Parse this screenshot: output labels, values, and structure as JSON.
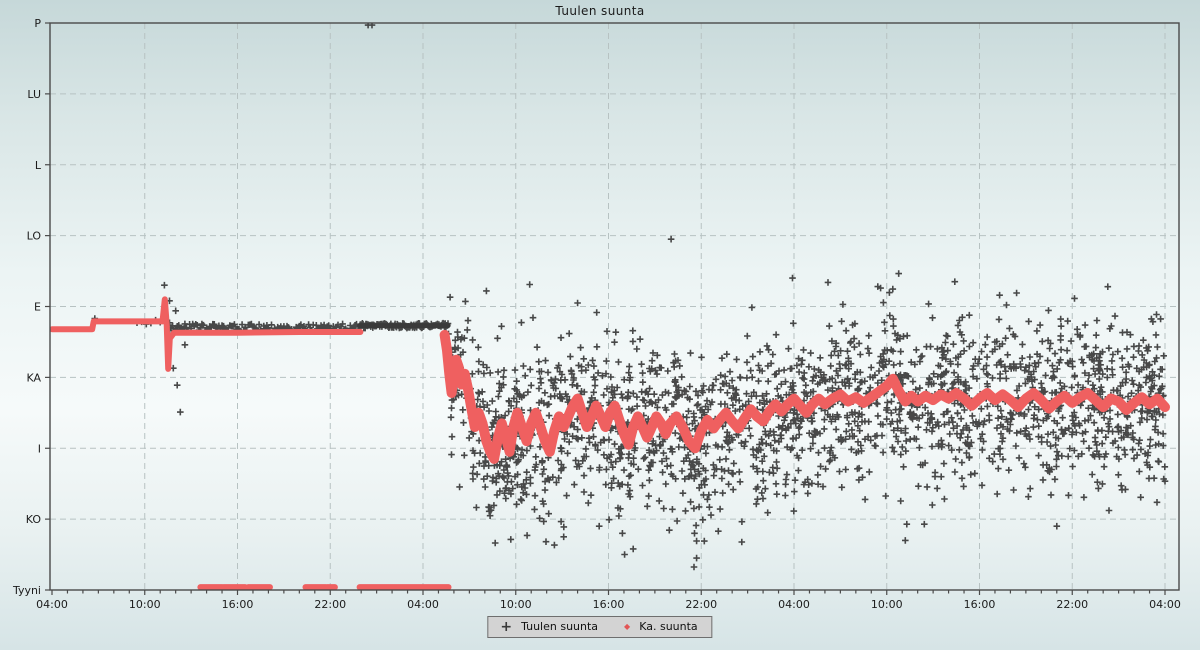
{
  "chart_data": {
    "type": "scatter",
    "title": "Tuulen suunta",
    "x_axis": {
      "major_tick_labels": [
        "04:00",
        "10:00",
        "16:00",
        "22:00",
        "04:00",
        "10:00",
        "16:00",
        "22:00",
        "04:00",
        "10:00",
        "16:00",
        "22:00",
        "04:00"
      ],
      "major_step_hours": 6,
      "minor_step_hours": 1,
      "range_hours": [
        0,
        72
      ],
      "start_time": "04:00"
    },
    "y_axis": {
      "categories": [
        "P",
        "LU",
        "L",
        "LO",
        "E",
        "KA",
        "I",
        "KO",
        "Tyyni"
      ],
      "top": "P",
      "bottom": "Tyyni",
      "grid": "dashed"
    },
    "legend_position": "bottom-center",
    "series": [
      {
        "name": "Tuulen suunta",
        "marker": "plus",
        "color": "#3a3a3a",
        "tight_band_segments": [
          {
            "t1": 5.5,
            "t2": 7.6,
            "v": 4.22,
            "jitter": 0.04,
            "step": 0.3
          },
          {
            "t1": 7.6,
            "t2": 19.9,
            "v": 4.3,
            "jitter": 0.055,
            "step": 0.1
          },
          {
            "t1": 19.9,
            "t2": 25.62,
            "v": 4.27,
            "jitter": 0.035,
            "step": 0.045
          }
        ],
        "band_core_line": {
          "t1": 19.9,
          "t2": 25.62,
          "v": 4.27
        },
        "scatter_cloud": {
          "t1": 25.62,
          "t2": 72,
          "count": 2150,
          "sigma": 0.58,
          "center_offset": 0.05
        },
        "outlier_points": [
          [
            2.77,
            4.17
          ],
          [
            20.45,
            0.03
          ],
          [
            20.7,
            0.03
          ],
          [
            40.05,
            3.05
          ],
          [
            7.27,
            3.7
          ],
          [
            7.6,
            3.92
          ],
          [
            8.0,
            4.06
          ],
          [
            8.6,
            4.54
          ],
          [
            7.85,
            4.87
          ],
          [
            8.1,
            5.11
          ],
          [
            8.3,
            5.49
          ],
          [
            34.0,
            3.95
          ],
          [
            28.1,
            3.78
          ],
          [
            30.9,
            3.69
          ],
          [
            47.9,
            3.6
          ],
          [
            53.6,
            3.74
          ],
          [
            58.4,
            3.65
          ],
          [
            61.3,
            3.84
          ],
          [
            62.4,
            3.81
          ],
          [
            68.3,
            3.72
          ],
          [
            50.2,
            3.66
          ],
          [
            36.9,
            7.2
          ],
          [
            37.6,
            7.42
          ],
          [
            41.7,
            7.55
          ],
          [
            42.2,
            7.31
          ],
          [
            43.1,
            7.17
          ],
          [
            46.3,
            6.91
          ],
          [
            42.1,
            7.01
          ],
          [
            33.1,
            7.25
          ],
          [
            35.4,
            7.1
          ],
          [
            55.2,
            7.3
          ],
          [
            65.0,
            7.1
          ]
        ]
      },
      {
        "name": "Ka. suunta",
        "marker": "dot",
        "color": "#ef6060",
        "calm_value_label": "Tyyni",
        "calm_segments": [
          [
            9.6,
            11.0
          ],
          [
            11.1,
            12.5
          ],
          [
            12.7,
            14.1
          ],
          [
            16.4,
            17.7
          ],
          [
            17.8,
            18.3
          ],
          [
            19.9,
            25.65
          ]
        ],
        "line_segments": [
          {
            "width": 6,
            "points": [
              [
                0,
                4.32
              ],
              [
                2.6,
                4.32
              ],
              [
                2.7,
                4.21
              ],
              [
                7.15,
                4.21
              ],
              [
                7.3,
                3.9
              ],
              [
                7.42,
                4.25
              ],
              [
                7.52,
                4.88
              ],
              [
                7.62,
                4.45
              ],
              [
                7.9,
                4.37
              ],
              [
                12,
                4.37
              ],
              [
                16,
                4.36
              ],
              [
                19.95,
                4.36
              ]
            ]
          },
          {
            "width": 10,
            "points": [
              [
                25.4,
                4.4
              ],
              [
                25.55,
                4.62
              ],
              [
                25.7,
                4.95
              ],
              [
                25.85,
                5.22
              ],
              [
                26.0,
                4.95
              ],
              [
                26.15,
                4.75
              ],
              [
                26.3,
                4.85
              ],
              [
                26.5,
                5.1
              ],
              [
                26.7,
                4.95
              ],
              [
                26.9,
                5.15
              ],
              [
                27.1,
                5.4
              ],
              [
                27.35,
                5.7
              ],
              [
                27.6,
                5.5
              ],
              [
                27.85,
                5.65
              ],
              [
                28.1,
                5.9
              ],
              [
                28.35,
                6.05
              ],
              [
                28.6,
                6.15
              ],
              [
                28.85,
                5.85
              ],
              [
                29.1,
                5.65
              ],
              [
                29.35,
                5.85
              ],
              [
                29.6,
                6.05
              ],
              [
                29.85,
                5.7
              ],
              [
                30.1,
                5.5
              ],
              [
                30.4,
                5.7
              ],
              [
                30.7,
                5.9
              ],
              [
                31.0,
                5.65
              ],
              [
                31.3,
                5.5
              ],
              [
                31.6,
                5.7
              ],
              [
                31.9,
                5.9
              ],
              [
                32.2,
                6.05
              ],
              [
                32.5,
                5.75
              ],
              [
                32.8,
                5.55
              ],
              [
                33.1,
                5.7
              ],
              [
                33.4,
                5.55
              ],
              [
                33.7,
                5.4
              ],
              [
                34.0,
                5.3
              ],
              [
                34.3,
                5.5
              ],
              [
                34.6,
                5.7
              ],
              [
                34.9,
                5.55
              ],
              [
                35.2,
                5.4
              ],
              [
                35.5,
                5.55
              ],
              [
                35.8,
                5.7
              ],
              [
                36.1,
                5.5
              ],
              [
                36.4,
                5.4
              ],
              [
                36.7,
                5.6
              ],
              [
                37.0,
                5.8
              ],
              [
                37.3,
                5.95
              ],
              [
                37.6,
                5.7
              ],
              [
                37.9,
                5.55
              ],
              [
                38.2,
                5.7
              ],
              [
                38.5,
                5.85
              ],
              [
                38.8,
                5.7
              ],
              [
                39.1,
                5.55
              ],
              [
                39.4,
                5.65
              ],
              [
                39.7,
                5.8
              ],
              [
                40.0,
                5.65
              ],
              [
                40.4,
                5.55
              ],
              [
                40.8,
                5.7
              ],
              [
                41.2,
                5.9
              ],
              [
                41.6,
                6.0
              ],
              [
                42.0,
                5.75
              ],
              [
                42.4,
                5.6
              ],
              [
                42.8,
                5.72
              ],
              [
                43.2,
                5.6
              ],
              [
                43.6,
                5.5
              ],
              [
                44.0,
                5.62
              ],
              [
                44.4,
                5.72
              ],
              [
                44.8,
                5.58
              ],
              [
                45.2,
                5.45
              ],
              [
                45.6,
                5.55
              ],
              [
                46.0,
                5.62
              ],
              [
                46.4,
                5.48
              ],
              [
                46.8,
                5.38
              ],
              [
                47.2,
                5.48
              ],
              [
                47.6,
                5.38
              ],
              [
                48.0,
                5.3
              ],
              [
                48.4,
                5.4
              ],
              [
                48.8,
                5.5
              ],
              [
                49.2,
                5.38
              ],
              [
                49.6,
                5.3
              ],
              [
                50.0,
                5.38
              ],
              [
                50.5,
                5.3
              ],
              [
                51.0,
                5.24
              ],
              [
                51.5,
                5.34
              ],
              [
                52.0,
                5.28
              ],
              [
                52.5,
                5.36
              ],
              [
                53.0,
                5.28
              ],
              [
                53.5,
                5.2
              ],
              [
                54.0,
                5.12
              ],
              [
                54.4,
                5.02
              ],
              [
                54.8,
                5.2
              ],
              [
                55.2,
                5.34
              ],
              [
                55.6,
                5.26
              ],
              [
                56.0,
                5.34
              ],
              [
                56.5,
                5.26
              ],
              [
                57.0,
                5.32
              ],
              [
                57.5,
                5.24
              ],
              [
                58.0,
                5.3
              ],
              [
                58.5,
                5.22
              ],
              [
                59.0,
                5.3
              ],
              [
                59.5,
                5.4
              ],
              [
                60.0,
                5.3
              ],
              [
                60.5,
                5.22
              ],
              [
                61.0,
                5.32
              ],
              [
                61.5,
                5.24
              ],
              [
                62.0,
                5.32
              ],
              [
                62.5,
                5.42
              ],
              [
                63.0,
                5.3
              ],
              [
                63.5,
                5.22
              ],
              [
                64.0,
                5.32
              ],
              [
                64.5,
                5.44
              ],
              [
                65.0,
                5.34
              ],
              [
                65.5,
                5.26
              ],
              [
                66.0,
                5.36
              ],
              [
                66.5,
                5.28
              ],
              [
                67.0,
                5.22
              ],
              [
                67.5,
                5.32
              ],
              [
                68.0,
                5.42
              ],
              [
                68.5,
                5.3
              ],
              [
                69.0,
                5.34
              ],
              [
                69.5,
                5.46
              ],
              [
                70.0,
                5.36
              ],
              [
                70.5,
                5.28
              ],
              [
                71.0,
                5.38
              ],
              [
                71.5,
                5.3
              ],
              [
                72.0,
                5.42
              ]
            ]
          }
        ]
      }
    ]
  },
  "legend": {
    "items": [
      {
        "symbol": "+",
        "label": "Tuulen suunta",
        "color": "#3a3a3a"
      },
      {
        "symbol": "◆",
        "label": "Ka. suunta",
        "color": "#e25555"
      }
    ]
  },
  "colors": {
    "background_top": "#c6d8d9",
    "background_mid": "#f6fafa",
    "background_bottom": "#d6e4e6",
    "plot_border": "#4a4a4a",
    "gridline": "#b7c2c2",
    "axis_text": "#1c1c1c",
    "legend_bg": "#d3d3d3",
    "legend_border": "#6e6e6e",
    "obs_marker": "#3a3a3a",
    "avg_marker": "#ef6060"
  }
}
